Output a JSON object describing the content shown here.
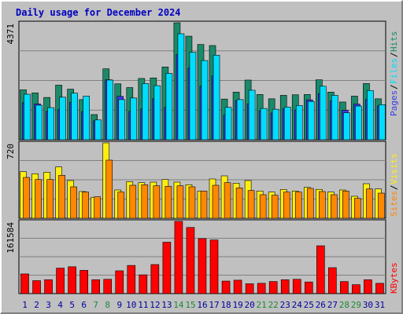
{
  "title": "Daily usage for December 2024",
  "colors": {
    "background": "#c0c0c0",
    "title": "#0000c0",
    "hits": "#1a8a6a",
    "files": "#00ddff",
    "pages": "#3a3aee",
    "visits": "#ffee11",
    "sites": "#ff8800",
    "kbytes": "#ff0000",
    "weekend_day": "#1a8a3a",
    "weekday_day": "#0000a0"
  },
  "chart_data": [
    {
      "type": "bar",
      "title": "Daily usage for December 2024",
      "categories": [
        "1",
        "2",
        "3",
        "4",
        "5",
        "6",
        "7",
        "8",
        "9",
        "10",
        "11",
        "12",
        "13",
        "14",
        "15",
        "16",
        "17",
        "18",
        "19",
        "20",
        "21",
        "22",
        "23",
        "24",
        "25",
        "26",
        "27",
        "28",
        "29",
        "30",
        "31"
      ],
      "ylim": [
        0,
        4371
      ],
      "max_label": "4371",
      "legend": [
        "Pages",
        "Files",
        "Hits"
      ],
      "series": [
        {
          "name": "Hits",
          "values": [
            1865,
            1750,
            1580,
            2040,
            1890,
            1500,
            940,
            2650,
            2090,
            1950,
            2290,
            2310,
            2720,
            4371,
            3870,
            3560,
            3520,
            1520,
            1780,
            2230,
            1690,
            1530,
            1660,
            1680,
            1690,
            2240,
            1780,
            1410,
            1630,
            2100,
            1530
          ]
        },
        {
          "name": "Files",
          "values": [
            1700,
            1290,
            1200,
            1590,
            1740,
            1630,
            740,
            2230,
            1500,
            1560,
            2100,
            2020,
            2480,
            3960,
            3270,
            2960,
            3160,
            1210,
            1500,
            1850,
            1170,
            1140,
            1220,
            1280,
            1430,
            2000,
            1660,
            1010,
            1260,
            1840,
            1310
          ]
        },
        {
          "name": "Pages",
          "values": [
            1380,
            1340,
            1060,
            1130,
            1400,
            1050,
            710,
            2240,
            1620,
            1060,
            1150,
            1530,
            1210,
            3180,
            2670,
            2000,
            2380,
            920,
            1460,
            1330,
            1080,
            1000,
            1160,
            1110,
            1490,
            1720,
            1450,
            1100,
            1330,
            1500,
            1260
          ]
        }
      ]
    },
    {
      "type": "bar",
      "categories": [
        "1",
        "2",
        "3",
        "4",
        "5",
        "6",
        "7",
        "8",
        "9",
        "10",
        "11",
        "12",
        "13",
        "14",
        "15",
        "16",
        "17",
        "18",
        "19",
        "20",
        "21",
        "22",
        "23",
        "24",
        "25",
        "26",
        "27",
        "28",
        "29",
        "30",
        "31"
      ],
      "ylim": [
        0,
        720
      ],
      "max_label": "720",
      "legend": [
        "Sites",
        "Visits"
      ],
      "series": [
        {
          "name": "Visits",
          "values": [
            445,
            425,
            440,
            490,
            360,
            255,
            200,
            720,
            270,
            350,
            340,
            345,
            370,
            345,
            320,
            260,
            375,
            405,
            335,
            360,
            260,
            250,
            275,
            260,
            295,
            275,
            250,
            270,
            210,
            330,
            280
          ]
        },
        {
          "name": "Sites",
          "values": [
            390,
            370,
            370,
            410,
            300,
            250,
            205,
            555,
            250,
            315,
            320,
            310,
            305,
            310,
            300,
            260,
            315,
            340,
            290,
            265,
            225,
            220,
            250,
            250,
            285,
            255,
            225,
            260,
            190,
            280,
            240
          ]
        }
      ]
    },
    {
      "type": "bar",
      "categories": [
        "1",
        "2",
        "3",
        "4",
        "5",
        "6",
        "7",
        "8",
        "9",
        "10",
        "11",
        "12",
        "13",
        "14",
        "15",
        "16",
        "17",
        "18",
        "19",
        "20",
        "21",
        "22",
        "23",
        "24",
        "25",
        "26",
        "27",
        "28",
        "29",
        "30",
        "31"
      ],
      "ylim": [
        0,
        161584
      ],
      "max_label": "161584",
      "legend": [
        "KBytes"
      ],
      "series": [
        {
          "name": "KBytes",
          "values": [
            44000,
            29000,
            31000,
            57000,
            60000,
            52000,
            31000,
            32000,
            51000,
            63000,
            42000,
            65000,
            115000,
            161584,
            148000,
            123000,
            120000,
            28000,
            30000,
            22000,
            23000,
            27000,
            31000,
            32000,
            26000,
            107000,
            58000,
            27000,
            20000,
            31000,
            23000
          ]
        }
      ]
    }
  ],
  "day_colors": [
    "weekday",
    "weekday",
    "weekday",
    "weekday",
    "weekday",
    "weekday",
    "weekend",
    "weekend",
    "weekday",
    "weekday",
    "weekday",
    "weekday",
    "weekday",
    "weekend",
    "weekend",
    "weekday",
    "weekday",
    "weekday",
    "weekday",
    "weekday",
    "weekend",
    "weekend",
    "weekday",
    "weekday",
    "weekday",
    "weekday",
    "weekday",
    "weekend",
    "weekend",
    "weekday",
    "weekday"
  ]
}
